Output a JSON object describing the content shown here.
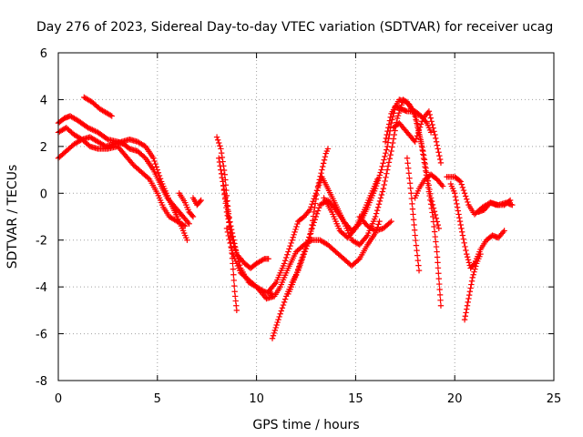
{
  "chart_data": {
    "type": "scatter",
    "title": "Day 276 of 2023, Sidereal Day-to-day VTEC variation (SDTVAR) for receiver ucag",
    "xlabel": "GPS time / hours",
    "ylabel": "SDTVAR / TECUs",
    "xlim": [
      0,
      25
    ],
    "ylim": [
      -8,
      6
    ],
    "xticks": [
      "0",
      "5",
      "10",
      "15",
      "20",
      "25"
    ],
    "yticks": [
      "-8",
      "-6",
      "-4",
      "-2",
      "0",
      "2",
      "4",
      "6"
    ],
    "grid": true,
    "marker": "plus",
    "color": "#ff0000",
    "tracks": [
      [
        [
          0.0,
          3.0
        ],
        [
          0.3,
          3.2
        ],
        [
          0.6,
          3.3
        ],
        [
          1.0,
          3.1
        ],
        [
          1.5,
          2.8
        ],
        [
          2.0,
          2.6
        ],
        [
          2.5,
          2.3
        ],
        [
          3.0,
          2.2
        ],
        [
          3.3,
          2.1
        ],
        [
          3.6,
          1.9
        ],
        [
          4.0,
          1.8
        ],
        [
          4.4,
          1.5
        ],
        [
          4.8,
          1.0
        ],
        [
          5.2,
          0.3
        ],
        [
          5.5,
          -0.2
        ],
        [
          5.9,
          -0.6
        ],
        [
          6.3,
          -1.0
        ],
        [
          6.6,
          -1.3
        ]
      ],
      [
        [
          0.0,
          1.5
        ],
        [
          0.4,
          1.8
        ],
        [
          0.8,
          2.1
        ],
        [
          1.2,
          2.3
        ],
        [
          1.6,
          2.4
        ],
        [
          2.0,
          2.2
        ],
        [
          2.4,
          2.0
        ],
        [
          2.8,
          2.1
        ],
        [
          3.2,
          2.2
        ],
        [
          3.6,
          2.3
        ],
        [
          4.0,
          2.2
        ],
        [
          4.4,
          2.0
        ],
        [
          4.8,
          1.5
        ],
        [
          5.2,
          0.5
        ],
        [
          5.6,
          -0.3
        ],
        [
          6.0,
          -1.0
        ],
        [
          6.3,
          -1.6
        ],
        [
          6.5,
          -2.0
        ]
      ],
      [
        [
          0.0,
          2.6
        ],
        [
          0.4,
          2.8
        ],
        [
          0.8,
          2.5
        ],
        [
          1.2,
          2.3
        ],
        [
          1.6,
          2.0
        ],
        [
          2.0,
          1.9
        ],
        [
          2.5,
          1.9
        ],
        [
          3.0,
          2.0
        ],
        [
          3.4,
          1.6
        ],
        [
          3.8,
          1.2
        ],
        [
          4.2,
          0.9
        ],
        [
          4.6,
          0.6
        ],
        [
          5.0,
          0.0
        ],
        [
          5.3,
          -0.6
        ],
        [
          5.6,
          -1.0
        ],
        [
          6.0,
          -1.2
        ],
        [
          6.4,
          -1.4
        ]
      ],
      [
        [
          1.3,
          4.1
        ],
        [
          1.7,
          3.9
        ],
        [
          2.1,
          3.6
        ],
        [
          2.5,
          3.4
        ],
        [
          2.7,
          3.3
        ]
      ],
      [
        [
          6.1,
          0.0
        ],
        [
          6.4,
          -0.4
        ],
        [
          6.6,
          -0.8
        ],
        [
          6.8,
          -1.0
        ]
      ],
      [
        [
          6.8,
          -0.2
        ],
        [
          7.0,
          -0.5
        ],
        [
          7.2,
          -0.3
        ]
      ],
      [
        [
          8.0,
          2.4
        ],
        [
          8.2,
          1.9
        ],
        [
          8.4,
          0.8
        ],
        [
          8.6,
          -1.0
        ],
        [
          8.8,
          -3.0
        ],
        [
          8.9,
          -4.2
        ],
        [
          9.0,
          -5.0
        ]
      ],
      [
        [
          8.1,
          1.5
        ],
        [
          8.3,
          0.5
        ],
        [
          8.5,
          -0.8
        ],
        [
          8.8,
          -2.0
        ],
        [
          9.2,
          -3.2
        ],
        [
          9.6,
          -3.8
        ],
        [
          10.0,
          -4.0
        ],
        [
          10.4,
          -4.2
        ],
        [
          10.8,
          -4.3
        ]
      ],
      [
        [
          8.2,
          1.0
        ],
        [
          8.4,
          0.0
        ],
        [
          8.7,
          -1.4
        ],
        [
          9.0,
          -2.6
        ],
        [
          9.4,
          -3.0
        ],
        [
          9.7,
          -3.2
        ],
        [
          10.0,
          -3.0
        ],
        [
          10.4,
          -2.8
        ],
        [
          10.6,
          -2.8
        ]
      ],
      [
        [
          8.5,
          -1.5
        ],
        [
          8.8,
          -2.6
        ],
        [
          9.2,
          -3.4
        ],
        [
          9.6,
          -3.7
        ],
        [
          10.0,
          -4.0
        ],
        [
          10.5,
          -4.5
        ],
        [
          10.9,
          -4.4
        ],
        [
          11.2,
          -4.0
        ],
        [
          11.6,
          -3.2
        ],
        [
          12.0,
          -2.5
        ],
        [
          12.4,
          -2.2
        ],
        [
          12.8,
          -2.0
        ],
        [
          13.2,
          -2.0
        ],
        [
          13.6,
          -2.2
        ],
        [
          14.0,
          -2.5
        ],
        [
          14.4,
          -2.8
        ],
        [
          14.8,
          -3.1
        ],
        [
          15.2,
          -2.8
        ],
        [
          15.6,
          -2.2
        ],
        [
          16.0,
          -1.7
        ],
        [
          16.2,
          -1.2
        ]
      ],
      [
        [
          10.6,
          -4.2
        ],
        [
          11.0,
          -3.8
        ],
        [
          11.4,
          -3.0
        ],
        [
          11.8,
          -2.0
        ],
        [
          12.1,
          -1.2
        ],
        [
          12.4,
          -1.0
        ],
        [
          12.7,
          -0.7
        ],
        [
          13.0,
          0.0
        ],
        [
          13.3,
          0.7
        ],
        [
          13.6,
          0.2
        ],
        [
          14.0,
          -0.5
        ],
        [
          14.4,
          -1.2
        ],
        [
          14.8,
          -1.6
        ],
        [
          15.2,
          -1.3
        ],
        [
          15.6,
          -0.6
        ],
        [
          16.0,
          0.2
        ],
        [
          16.3,
          1.0
        ],
        [
          16.6,
          2.0
        ],
        [
          16.8,
          3.0
        ],
        [
          17.0,
          3.7
        ],
        [
          17.3,
          3.6
        ],
        [
          17.6,
          3.5
        ],
        [
          18.0,
          3.5
        ],
        [
          18.3,
          3.3
        ],
        [
          18.6,
          3.0
        ],
        [
          18.8,
          2.6
        ]
      ],
      [
        [
          10.8,
          -6.2
        ],
        [
          11.1,
          -5.4
        ],
        [
          11.5,
          -4.4
        ],
        [
          11.8,
          -3.8
        ],
        [
          12.1,
          -3.3
        ],
        [
          12.4,
          -2.6
        ],
        [
          12.7,
          -1.9
        ],
        [
          12.9,
          -0.8
        ],
        [
          13.1,
          0.3
        ],
        [
          13.3,
          1.0
        ],
        [
          13.5,
          1.7
        ],
        [
          13.6,
          1.9
        ]
      ],
      [
        [
          11.6,
          -4.3
        ],
        [
          12.0,
          -3.5
        ],
        [
          12.4,
          -2.5
        ],
        [
          12.8,
          -1.5
        ],
        [
          13.2,
          -0.5
        ],
        [
          13.6,
          -0.3
        ],
        [
          14.0,
          -0.7
        ],
        [
          14.4,
          -1.2
        ],
        [
          14.8,
          -2.0
        ],
        [
          15.2,
          -2.2
        ],
        [
          15.6,
          -1.8
        ],
        [
          16.0,
          -1.0
        ],
        [
          16.4,
          0.2
        ],
        [
          16.8,
          1.8
        ],
        [
          17.1,
          3.2
        ],
        [
          17.4,
          4.0
        ],
        [
          17.7,
          3.8
        ],
        [
          18.0,
          3.3
        ],
        [
          18.3,
          2.2
        ],
        [
          18.6,
          0.6
        ],
        [
          18.9,
          -1.0
        ],
        [
          19.1,
          -2.5
        ],
        [
          19.3,
          -4.8
        ]
      ],
      [
        [
          13.4,
          -0.2
        ],
        [
          13.8,
          -0.8
        ],
        [
          14.2,
          -1.6
        ],
        [
          14.6,
          -1.9
        ],
        [
          15.0,
          -1.5
        ],
        [
          15.4,
          -0.8
        ],
        [
          15.8,
          0.0
        ],
        [
          16.1,
          0.6
        ]
      ],
      [
        [
          15.2,
          -1.0
        ],
        [
          15.6,
          -1.4
        ],
        [
          16.0,
          -1.6
        ],
        [
          16.4,
          -1.5
        ],
        [
          16.8,
          -1.2
        ]
      ],
      [
        [
          16.5,
          2.2
        ],
        [
          16.8,
          3.4
        ],
        [
          17.2,
          4.0
        ],
        [
          17.6,
          3.9
        ],
        [
          18.0,
          3.4
        ],
        [
          18.4,
          1.8
        ],
        [
          18.8,
          -0.2
        ],
        [
          19.2,
          -1.5
        ]
      ],
      [
        [
          16.9,
          2.8
        ],
        [
          17.2,
          3.0
        ],
        [
          17.6,
          2.6
        ],
        [
          18.0,
          2.2
        ],
        [
          18.4,
          3.2
        ],
        [
          18.7,
          3.5
        ],
        [
          19.0,
          2.5
        ],
        [
          19.3,
          1.3
        ]
      ],
      [
        [
          17.6,
          1.5
        ],
        [
          17.8,
          0.0
        ],
        [
          18.0,
          -1.8
        ],
        [
          18.2,
          -3.3
        ]
      ],
      [
        [
          18.0,
          -0.2
        ],
        [
          18.2,
          0.2
        ],
        [
          18.5,
          0.6
        ],
        [
          18.8,
          0.8
        ],
        [
          19.1,
          0.6
        ],
        [
          19.4,
          0.3
        ]
      ],
      [
        [
          19.6,
          0.7
        ],
        [
          20.0,
          0.7
        ],
        [
          20.3,
          0.5
        ],
        [
          20.5,
          0.0
        ],
        [
          20.7,
          -0.5
        ],
        [
          21.0,
          -0.9
        ],
        [
          21.4,
          -0.6
        ],
        [
          21.8,
          -0.4
        ],
        [
          22.2,
          -0.5
        ],
        [
          22.6,
          -0.4
        ],
        [
          22.9,
          -0.5
        ]
      ],
      [
        [
          19.8,
          0.4
        ],
        [
          20.0,
          0.0
        ],
        [
          20.2,
          -0.9
        ],
        [
          20.4,
          -1.8
        ],
        [
          20.6,
          -2.6
        ],
        [
          20.8,
          -3.2
        ],
        [
          21.0,
          -3.0
        ],
        [
          21.3,
          -2.4
        ],
        [
          21.6,
          -2.0
        ],
        [
          21.9,
          -1.8
        ],
        [
          22.2,
          -1.9
        ],
        [
          22.5,
          -1.6
        ]
      ],
      [
        [
          20.5,
          -5.4
        ],
        [
          20.7,
          -4.5
        ],
        [
          20.9,
          -3.6
        ],
        [
          21.1,
          -3.0
        ],
        [
          21.3,
          -2.6
        ]
      ],
      [
        [
          21.2,
          -0.8
        ],
        [
          21.5,
          -0.7
        ],
        [
          21.8,
          -0.4
        ],
        [
          22.1,
          -0.5
        ],
        [
          22.5,
          -0.5
        ],
        [
          22.8,
          -0.3
        ]
      ]
    ]
  }
}
